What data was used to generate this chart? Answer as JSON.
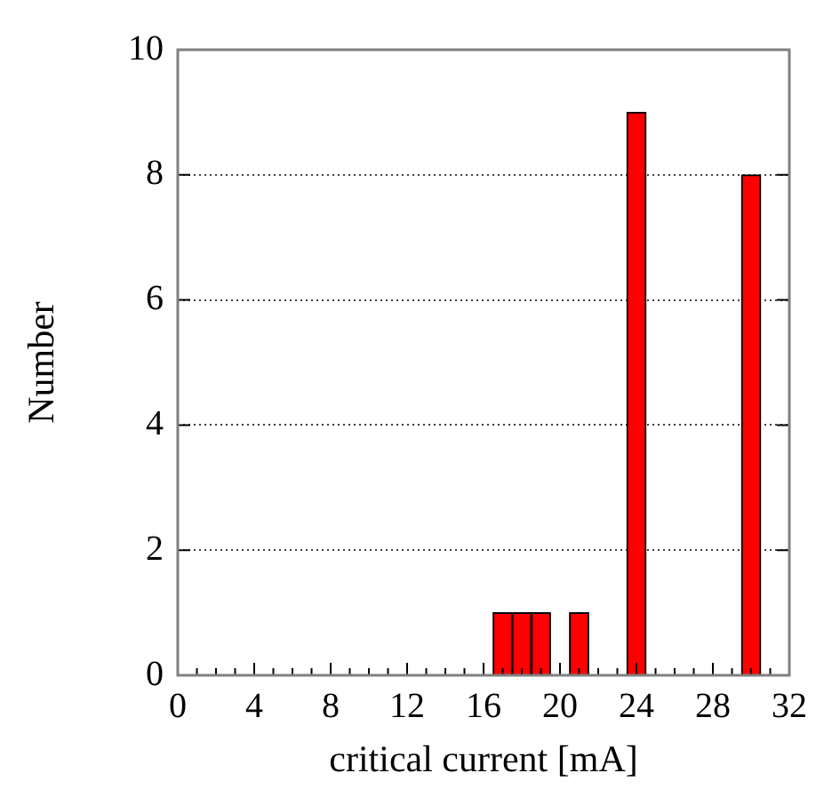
{
  "chart_data": {
    "type": "histogram",
    "xlabel": "critical current [mA]",
    "ylabel": "Number",
    "color": "#ff0000",
    "bins": [
      16.5,
      17.5,
      18.5,
      19.5,
      20.5,
      21.5,
      22.5,
      23.5,
      24.5,
      25.5,
      26.5,
      27.5,
      28.5,
      29.5,
      30.5
    ],
    "values": [
      1,
      1,
      1,
      0,
      1,
      0,
      0,
      9,
      0,
      0,
      0,
      0,
      0,
      8
    ],
    "xlim": [
      0,
      32
    ],
    "xticks": [
      0,
      {
        "value": 1,
        "label": null
      },
      {
        "value": 2,
        "label": null
      },
      {
        "value": 3,
        "label": null
      },
      4,
      {
        "value": 5,
        "label": null
      },
      {
        "value": 6,
        "label": null
      },
      {
        "value": 7,
        "label": null
      },
      8,
      {
        "value": 9,
        "label": null
      },
      {
        "value": 10,
        "label": null
      },
      {
        "value": 11,
        "label": null
      },
      12,
      {
        "value": 13,
        "label": null
      },
      {
        "value": 14,
        "label": null
      },
      {
        "value": 15,
        "label": null
      },
      16,
      {
        "value": 17,
        "label": null
      },
      {
        "value": 18,
        "label": null
      },
      {
        "value": 19,
        "label": null
      },
      20,
      {
        "value": 21,
        "label": null
      },
      {
        "value": 22,
        "label": null
      },
      {
        "value": 23,
        "label": null
      },
      24,
      {
        "value": 25,
        "label": null
      },
      {
        "value": 26,
        "label": null
      },
      {
        "value": 27,
        "label": null
      },
      28,
      {
        "value": 29,
        "label": null
      },
      {
        "value": 30,
        "label": null
      },
      {
        "value": 31,
        "label": null
      },
      32
    ],
    "ylim": [
      0,
      10
    ],
    "yticks": [
      0,
      2,
      4,
      6,
      8,
      10
    ],
    "grid": "y"
  }
}
